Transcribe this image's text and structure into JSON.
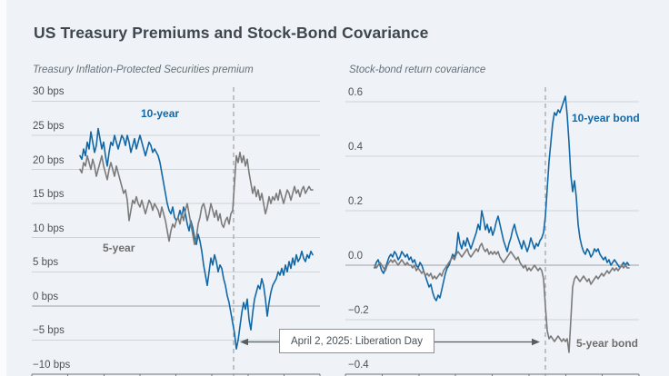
{
  "page": {
    "title": "US Treasury Premiums and Stock-Bond Covariance"
  },
  "colors": {
    "background": "#eff3f7",
    "blue": "#1268a7",
    "gray": "#7b7b7b",
    "grid": "#cdd3d7",
    "zero_line": "#9aa2a8",
    "axis": "#6f777d",
    "dashed": "#9aa1a7",
    "arrow": "#565e64",
    "title_text": "#3f474e",
    "subtitle_text": "#657078",
    "tick_text": "#4a5258"
  },
  "annotation": {
    "label": "April 2, 2025: Liberation Day"
  },
  "chart_data": [
    {
      "type": "line",
      "title": "Treasury Inflation-Protected Securities premium",
      "unit": "bps",
      "ylim": [
        -10,
        30
      ],
      "grid": true,
      "legend_position": "inline labels",
      "y_ticks": [
        {
          "value": 30,
          "label": "30 bps"
        },
        {
          "value": 25,
          "label": "25 bps"
        },
        {
          "value": 20,
          "label": "20 bps"
        },
        {
          "value": 15,
          "label": "15 bps"
        },
        {
          "value": 10,
          "label": "10 bps"
        },
        {
          "value": 5,
          "label": "5 bps"
        },
        {
          "value": 0,
          "label": "0 bps"
        },
        {
          "value": -5,
          "label": "−5 bps"
        },
        {
          "value": -10,
          "label": "−10 bps"
        }
      ],
      "event_line": {
        "label": "April 2, 2025: Liberation Day"
      },
      "series": [
        {
          "name": "10-year",
          "color": "blue",
          "values": [
            22,
            21.5,
            23,
            22,
            24,
            23,
            25.5,
            24,
            22.5,
            23.5,
            26,
            24.5,
            23,
            24,
            22,
            20.5,
            22.5,
            24,
            23.5,
            25,
            24,
            23,
            24,
            25,
            24.5,
            23.5,
            25,
            24,
            22.5,
            23.5,
            24.5,
            23,
            24,
            25,
            24,
            23,
            22,
            23,
            24,
            23.5,
            22.5,
            23,
            22.5,
            22,
            21,
            19.5,
            18,
            16.5,
            15,
            14,
            13.5,
            14.5,
            13,
            12.5,
            13,
            14,
            13,
            14.5,
            13.5,
            12,
            11,
            12.5,
            11.5,
            10,
            9,
            10.5,
            9.5,
            8,
            6,
            4.5,
            3,
            5,
            7,
            6,
            7.5,
            6.5,
            5,
            6,
            5.5,
            4,
            3,
            1.5,
            0.5,
            -1,
            -2.5,
            -4,
            -6.3,
            -5,
            -3,
            -1,
            0.5,
            -0.5,
            1,
            -2,
            -3.5,
            -1,
            1,
            2,
            3,
            2.5,
            4,
            3,
            1,
            -1.5,
            0.5,
            2,
            3,
            3.5,
            4,
            5,
            4.5,
            5.5,
            4.5,
            6,
            5,
            6.5,
            5.5,
            7,
            6,
            7.5,
            6.5,
            7,
            8,
            7,
            6.5,
            7.5,
            7,
            8,
            7.5
          ]
        },
        {
          "name": "5-year",
          "color": "gray",
          "values": [
            20,
            19.5,
            21,
            20.5,
            22,
            21,
            20,
            21.5,
            20.5,
            19,
            20,
            21,
            22,
            20.5,
            19.5,
            18.5,
            20,
            21,
            20,
            19,
            20.5,
            19.5,
            18.5,
            17.5,
            16.5,
            17,
            15.5,
            12.5,
            14,
            15.5,
            15,
            16,
            15,
            14.5,
            15.5,
            14.5,
            13.5,
            14.5,
            15.5,
            15,
            14,
            15,
            14.5,
            14,
            13,
            14.5,
            13.5,
            12.5,
            11,
            9.5,
            11,
            12,
            11.5,
            12.5,
            13,
            12,
            13.5,
            12.5,
            14,
            15,
            13.5,
            12,
            10.5,
            9,
            10,
            12,
            13,
            14.5,
            15,
            14,
            12.5,
            13.5,
            15,
            14,
            13,
            14,
            12.5,
            13.5,
            12,
            11.5,
            12.5,
            13,
            12,
            13.5,
            14,
            18,
            22,
            21,
            22.5,
            21,
            22,
            20.5,
            21.5,
            19.5,
            18,
            16.5,
            17.5,
            16,
            17,
            15.5,
            16.5,
            15,
            13.5,
            14.5,
            16,
            15,
            16,
            15.5,
            16.5,
            15.5,
            17,
            16,
            15,
            16,
            17,
            16.5,
            15.5,
            16.5,
            17.5,
            16.5,
            17,
            16,
            17,
            17.5,
            16.5,
            17,
            17.5,
            17,
            17
          ]
        }
      ]
    },
    {
      "type": "line",
      "title": "Stock-bond return covariance",
      "unit": "",
      "ylim": [
        -0.4,
        0.6
      ],
      "grid": true,
      "legend_position": "inline labels",
      "y_ticks": [
        {
          "value": 0.6,
          "label": "0.6"
        },
        {
          "value": 0.4,
          "label": "0.4"
        },
        {
          "value": 0.2,
          "label": "0.2"
        },
        {
          "value": 0.0,
          "label": "0.0"
        },
        {
          "value": -0.2,
          "label": "−0.2"
        },
        {
          "value": -0.4,
          "label": "−0.4"
        }
      ],
      "event_line": {
        "label": "April 2, 2025: Liberation Day"
      },
      "series": [
        {
          "name": "10-year bond",
          "color": "blue",
          "values": [
            -0.01,
            0.01,
            0.02,
            0,
            -0.02,
            -0.03,
            -0.01,
            0.01,
            0.03,
            0.04,
            0.03,
            0.05,
            0.04,
            0.02,
            0.03,
            0.05,
            0.04,
            0.03,
            0.04,
            0.02,
            0.03,
            0.01,
            0.02,
            0,
            -0.01,
            0.01,
            0,
            -0.02,
            -0.04,
            -0.06,
            -0.08,
            -0.07,
            -0.1,
            -0.12,
            -0.13,
            -0.11,
            -0.12,
            -0.09,
            -0.06,
            -0.03,
            -0.01,
            0,
            0.02,
            0.04,
            0.03,
            0.05,
            0.12,
            0.08,
            0.06,
            0.09,
            0.07,
            0.1,
            0.08,
            0.06,
            0.08,
            0.1,
            0.12,
            0.15,
            0.13,
            0.2,
            0.17,
            0.13,
            0.15,
            0.12,
            0.14,
            0.11,
            0.13,
            0.16,
            0.18,
            0.15,
            0.12,
            0.09,
            0.07,
            0.05,
            0.08,
            0.1,
            0.13,
            0.15,
            0.12,
            0.1,
            0.08,
            0.06,
            0.09,
            0.07,
            0.05,
            0.07,
            0.1,
            0.08,
            0.06,
            0.08,
            0.07,
            0.09,
            0.1,
            0.12,
            0.18,
            0.28,
            0.38,
            0.45,
            0.52,
            0.56,
            0.55,
            0.57,
            0.56,
            0.58,
            0.6,
            0.62,
            0.55,
            0.45,
            0.33,
            0.27,
            0.31,
            0.25,
            0.15,
            0.1,
            0.07,
            0.05,
            0.04,
            0.06,
            0.05,
            0.03,
            0.04,
            0.06,
            0.05,
            0.06,
            0.04,
            0.03,
            0.02,
            0.03,
            0.01,
            0.02,
            0,
            0.01,
            0.02,
            0.01,
            0,
            -0.01,
            0,
            0.01,
            0,
            0.01,
            0
          ]
        },
        {
          "name": "5-year bond",
          "color": "gray",
          "values": [
            0,
            -0.01,
            0,
            0.01,
            0,
            -0.01,
            -0.02,
            0,
            0.01,
            0.02,
            0.01,
            0.02,
            0.01,
            0,
            0.01,
            0.02,
            0.01,
            0,
            0.01,
            0,
            0,
            -0.01,
            0,
            -0.02,
            -0.01,
            -0.02,
            -0.03,
            -0.02,
            -0.04,
            -0.03,
            -0.04,
            -0.03,
            -0.05,
            -0.04,
            -0.05,
            -0.04,
            -0.03,
            -0.04,
            -0.02,
            -0.01,
            0,
            0.01,
            0.02,
            0.03,
            0.02,
            0.04,
            0.05,
            0.04,
            0.03,
            0.04,
            0.05,
            0.06,
            0.04,
            0.03,
            0.04,
            0.05,
            0.06,
            0.05,
            0.07,
            0.08,
            0.06,
            0.05,
            0.06,
            0.04,
            0.05,
            0.04,
            0.05,
            0.04,
            0.05,
            0.03,
            0.02,
            0.01,
            0.02,
            0.03,
            0.04,
            0.05,
            0.04,
            0.03,
            0.02,
            0.03,
            0.01,
            0,
            -0.01,
            0,
            -0.02,
            -0.01,
            -0.02,
            -0.01,
            0,
            -0.01,
            -0.02,
            -0.01,
            -0.02,
            -0.05,
            -0.15,
            -0.24,
            -0.27,
            -0.26,
            -0.27,
            -0.28,
            -0.27,
            -0.26,
            -0.27,
            -0.28,
            -0.27,
            -0.28,
            -0.27,
            -0.32,
            -0.2,
            -0.08,
            -0.05,
            -0.04,
            -0.05,
            -0.06,
            -0.05,
            -0.04,
            -0.05,
            -0.06,
            -0.05,
            -0.07,
            -0.06,
            -0.05,
            -0.04,
            -0.05,
            -0.04,
            -0.03,
            -0.04,
            -0.03,
            -0.02,
            -0.03,
            -0.02,
            -0.01,
            -0.02,
            -0.01,
            -0.02,
            -0.01,
            0,
            -0.01,
            0,
            -0.01,
            -0.01
          ]
        }
      ]
    }
  ]
}
